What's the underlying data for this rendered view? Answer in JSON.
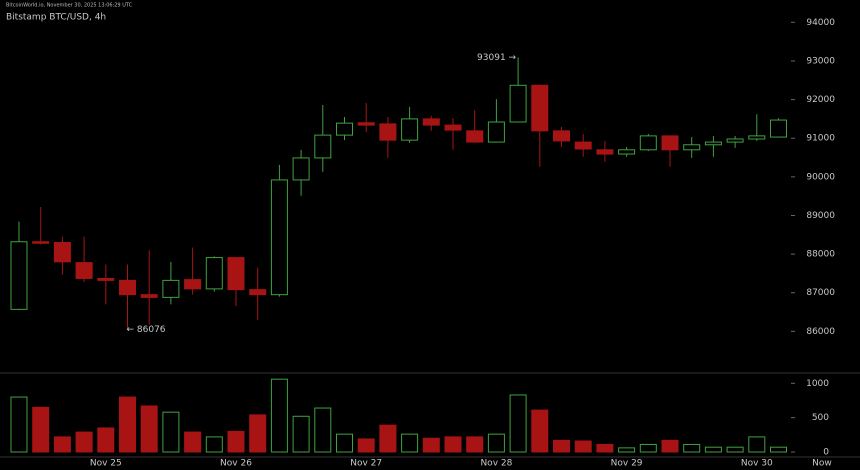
{
  "chart_data": {
    "type": "candlestick",
    "watermark": "BitcoinWorld.io, November 30, 2025 13:06:29 UTC",
    "title": "Bitstamp BTC/USD, 4h",
    "categories": [
      null,
      null,
      null,
      null,
      "Nov 25",
      null,
      null,
      null,
      null,
      null,
      "Nov 26",
      null,
      null,
      null,
      null,
      null,
      "Nov 27",
      null,
      null,
      null,
      null,
      null,
      "Nov 28",
      null,
      null,
      null,
      null,
      null,
      "Nov 29",
      null,
      null,
      null,
      null,
      null,
      "Nov 30",
      null
    ],
    "now_label": "Now",
    "open": [
      86570,
      88320,
      88300,
      87780,
      87370,
      87320,
      86950,
      86880,
      87340,
      87100,
      87910,
      87080,
      86950,
      89920,
      90490,
      91080,
      91400,
      91370,
      90950,
      91500,
      91340,
      91190,
      90900,
      91420,
      92370,
      91190,
      90900,
      90700,
      90590,
      90700,
      91060,
      90700,
      90830,
      90900,
      90980,
      91030
    ],
    "high": [
      88840,
      89220,
      88450,
      88450,
      87730,
      87730,
      88100,
      87800,
      88170,
      87940,
      87920,
      87650,
      90310,
      90700,
      91860,
      91550,
      91910,
      91550,
      91810,
      91580,
      91520,
      91730,
      92010,
      93091,
      92390,
      91290,
      91110,
      90930,
      90770,
      91110,
      91070,
      91030,
      91060,
      91060,
      91620,
      91520
    ],
    "low": [
      86550,
      88250,
      87470,
      87270,
      86700,
      86076,
      86180,
      86700,
      86950,
      87030,
      86650,
      86300,
      86900,
      89510,
      90130,
      90950,
      91160,
      90490,
      90880,
      91190,
      90700,
      90880,
      90900,
      91420,
      90260,
      90770,
      90520,
      90390,
      90520,
      90670,
      90260,
      90490,
      90520,
      90750,
      90930,
      91030
    ],
    "close": [
      88320,
      88290,
      87800,
      87370,
      87320,
      86950,
      86880,
      87320,
      87100,
      87910,
      87080,
      86950,
      89920,
      90490,
      91080,
      91390,
      91340,
      90950,
      91500,
      91340,
      91210,
      90900,
      91420,
      92370,
      91190,
      90930,
      90720,
      90590,
      90700,
      91060,
      90700,
      90830,
      90900,
      90980,
      91060,
      91470
    ],
    "volume": [
      800,
      650,
      220,
      290,
      350,
      800,
      670,
      580,
      290,
      220,
      300,
      540,
      1060,
      520,
      640,
      260,
      190,
      390,
      260,
      200,
      220,
      220,
      260,
      830,
      610,
      170,
      160,
      110,
      60,
      110,
      170,
      110,
      70,
      70,
      220,
      70
    ],
    "up_color": "#3fa33f",
    "down_color": "#a81414",
    "ylim": [
      85000,
      94500
    ],
    "yticks": [
      86000,
      87000,
      88000,
      89000,
      90000,
      91000,
      92000,
      93000,
      94000
    ],
    "volume_ylim": [
      0,
      1150
    ],
    "volume_yticks": [
      0,
      500,
      1000
    ],
    "annotations": [
      {
        "value": 86076,
        "label": "← 86076"
      },
      {
        "value": 93091,
        "label": "93091 →"
      }
    ]
  }
}
